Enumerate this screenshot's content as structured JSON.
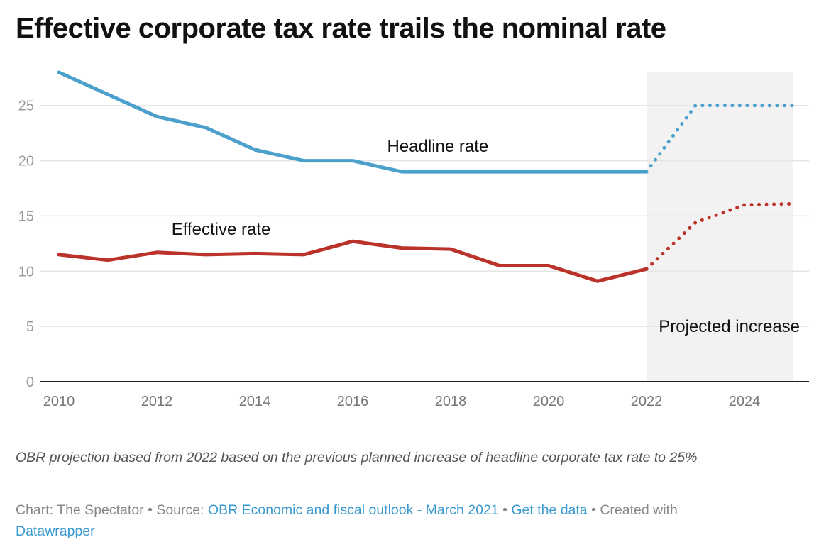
{
  "title": "Effective corporate tax rate trails the nominal rate",
  "notes": "OBR projection based from 2022 based on the previous planned increase of headline corporate tax rate to 25%",
  "byline": {
    "chart_prefix": "Chart: The Spectator",
    "sep": " • ",
    "source_prefix": "Source: ",
    "source_link": "OBR Economic and fiscal outlook - March 2021",
    "get_data": "Get the data",
    "created_with": "Created with",
    "tool_link": "Datawrapper"
  },
  "colors": {
    "headline": "#4ba0cc",
    "effective": "#bb322a",
    "shade": "#f2f2f2",
    "grid": "#e5e5e5",
    "axis": "#222222",
    "tick": "#999999"
  },
  "chart_data": {
    "type": "line",
    "title": "Effective corporate tax rate trails the nominal rate",
    "xlabel": "",
    "ylabel": "",
    "xlim": [
      2010,
      2025
    ],
    "ylim": [
      0,
      28
    ],
    "x_ticks": [
      2010,
      2012,
      2014,
      2016,
      2018,
      2020,
      2022,
      2024
    ],
    "y_ticks": [
      0,
      5,
      10,
      15,
      20,
      25
    ],
    "grid": true,
    "projection_start": 2022,
    "shaded_range": [
      2022,
      2025
    ],
    "x": [
      2010,
      2011,
      2012,
      2013,
      2014,
      2015,
      2016,
      2017,
      2018,
      2019,
      2020,
      2021,
      2022,
      2023,
      2024,
      2025
    ],
    "series": [
      {
        "name": "Headline rate",
        "key": "headline",
        "values": [
          28,
          26,
          24,
          23,
          21,
          20,
          20,
          19,
          19,
          19,
          19,
          19,
          19,
          25,
          25,
          25
        ]
      },
      {
        "name": "Effective rate",
        "key": "effective",
        "values": [
          11.5,
          11.0,
          11.7,
          11.5,
          11.6,
          11.5,
          12.7,
          12.1,
          12.0,
          10.5,
          10.5,
          9.1,
          10.2,
          14.4,
          16.0,
          16.1
        ]
      }
    ],
    "annotations": [
      {
        "text": "Headline rate",
        "x": 2018.5,
        "y": 20.8
      },
      {
        "text": "Effective rate",
        "x": 2012.3,
        "y": 13.3
      },
      {
        "text": "Projected increase",
        "x": 2022.25,
        "y": 4.5
      }
    ]
  }
}
